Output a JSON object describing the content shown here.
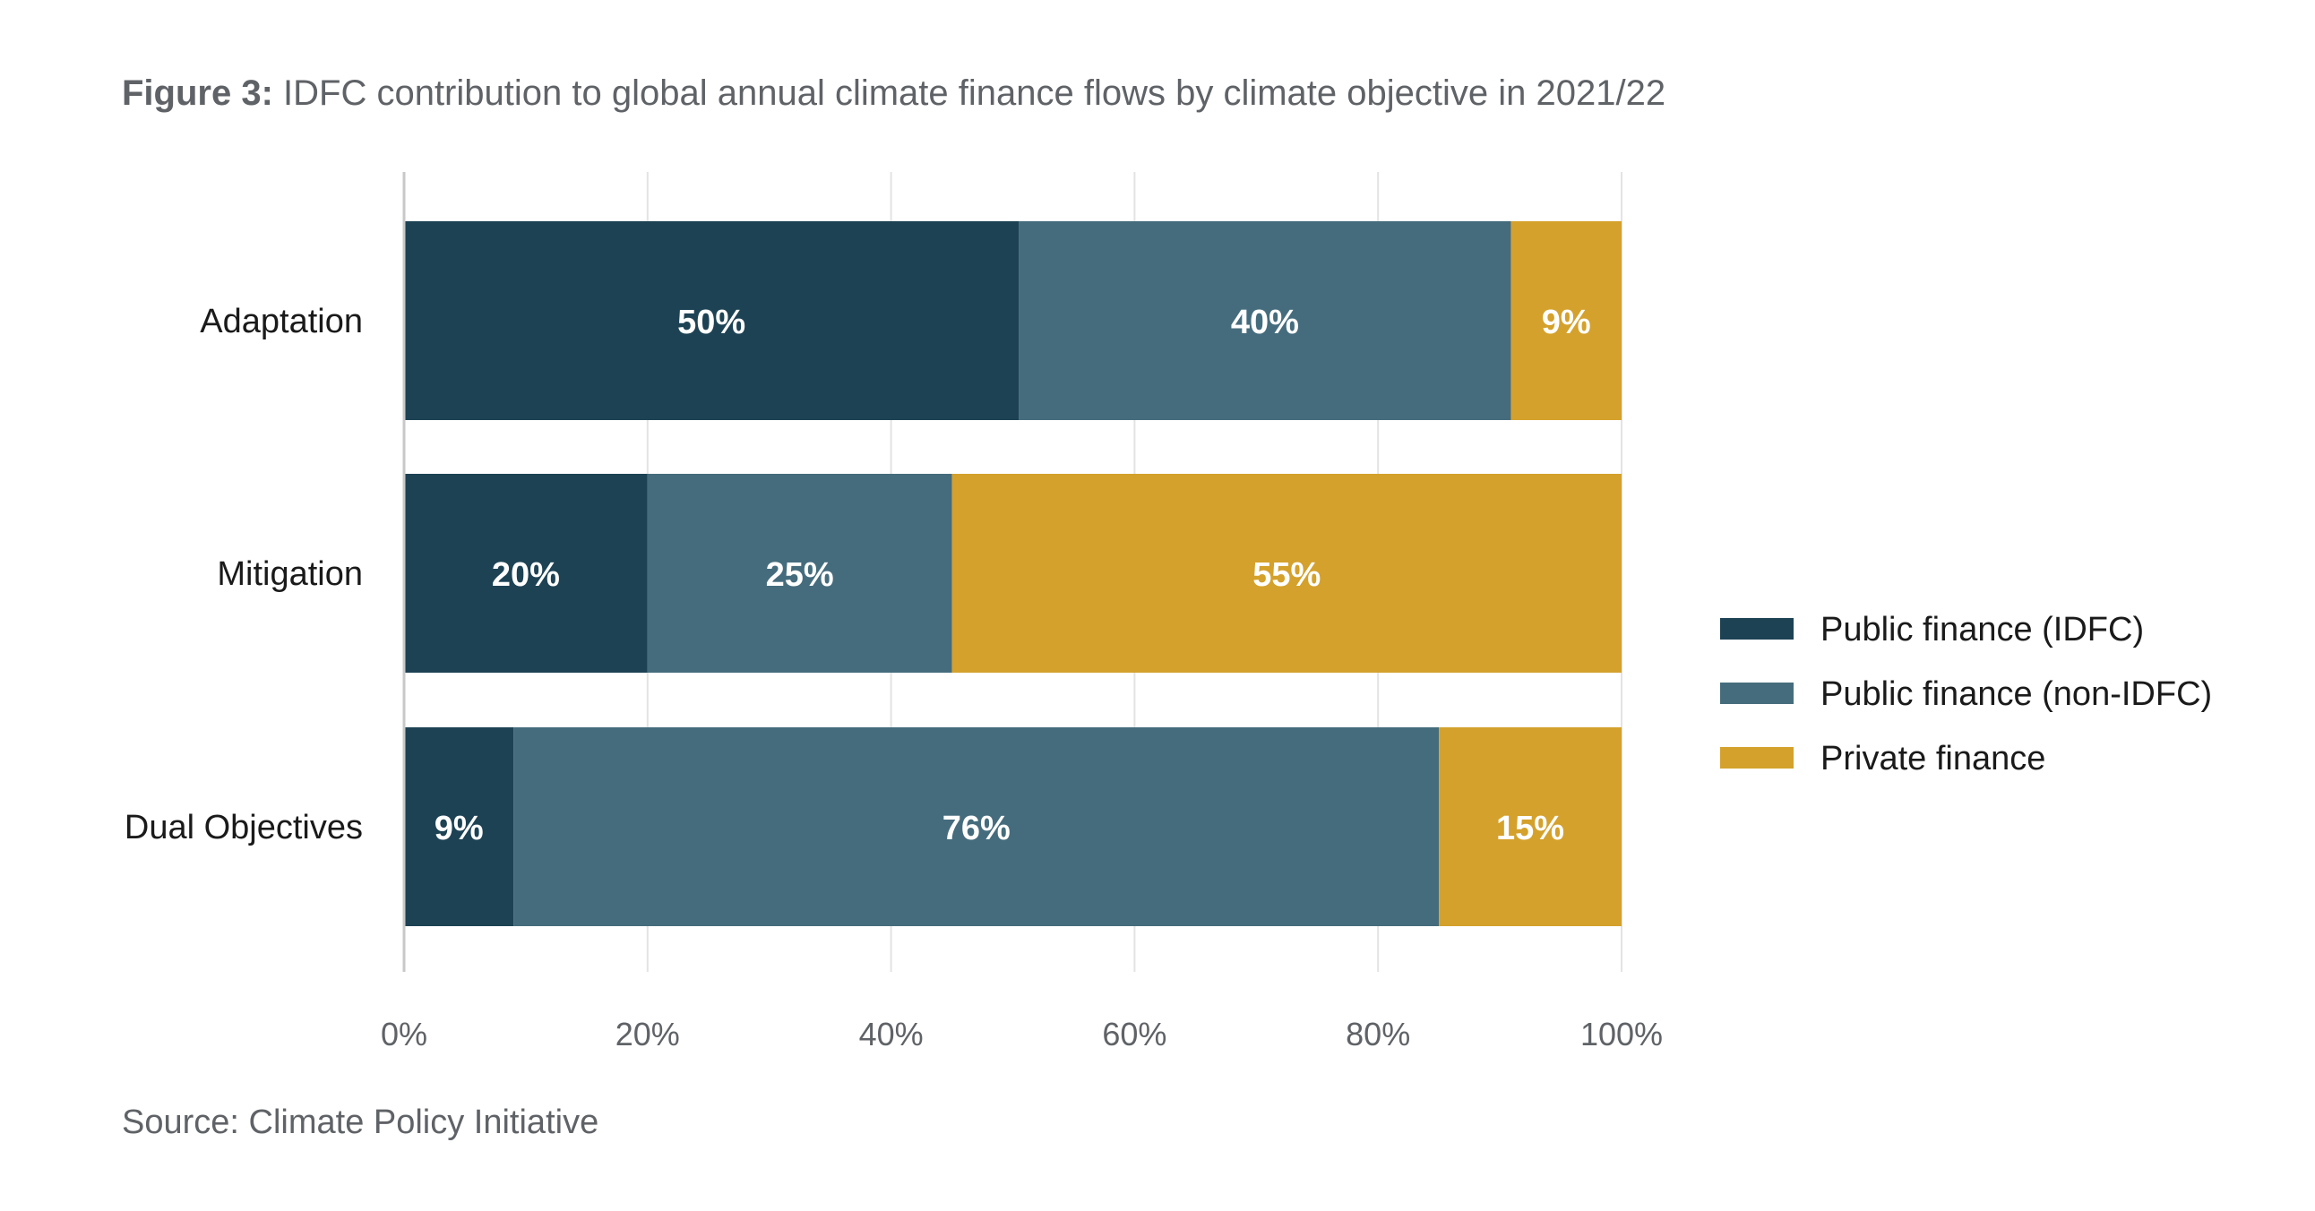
{
  "figure": {
    "title_label": "Figure 3:",
    "title_text": " IDFC contribution to global annual climate finance flows by climate objective in 2021/22",
    "source": "Source: Climate Policy Initiative"
  },
  "chart_data": {
    "type": "bar",
    "orientation": "horizontal",
    "stacked": true,
    "categories": [
      "Adaptation",
      "Mitigation",
      "Dual Objectives"
    ],
    "series": [
      {
        "name": "Public finance (IDFC)",
        "values": [
          50,
          20,
          9
        ],
        "labels": [
          "50%",
          "20%",
          "9%"
        ],
        "color": "#1d4254"
      },
      {
        "name": "Public finance (non-IDFC)",
        "values": [
          40,
          25,
          76
        ],
        "labels": [
          "40%",
          "25%",
          "76%"
        ],
        "color": "#456c7d"
      },
      {
        "name": "Private finance",
        "values": [
          9,
          55,
          15
        ],
        "labels": [
          "9%",
          "55%",
          "15%"
        ],
        "color": "#d4a12c"
      }
    ],
    "xlim": [
      0,
      100
    ],
    "xticks": [
      0,
      20,
      40,
      60,
      80,
      100
    ],
    "xtick_labels": [
      "0%",
      "20%",
      "40%",
      "60%",
      "80%",
      "100%"
    ],
    "grid": true,
    "legend_position": "right"
  }
}
